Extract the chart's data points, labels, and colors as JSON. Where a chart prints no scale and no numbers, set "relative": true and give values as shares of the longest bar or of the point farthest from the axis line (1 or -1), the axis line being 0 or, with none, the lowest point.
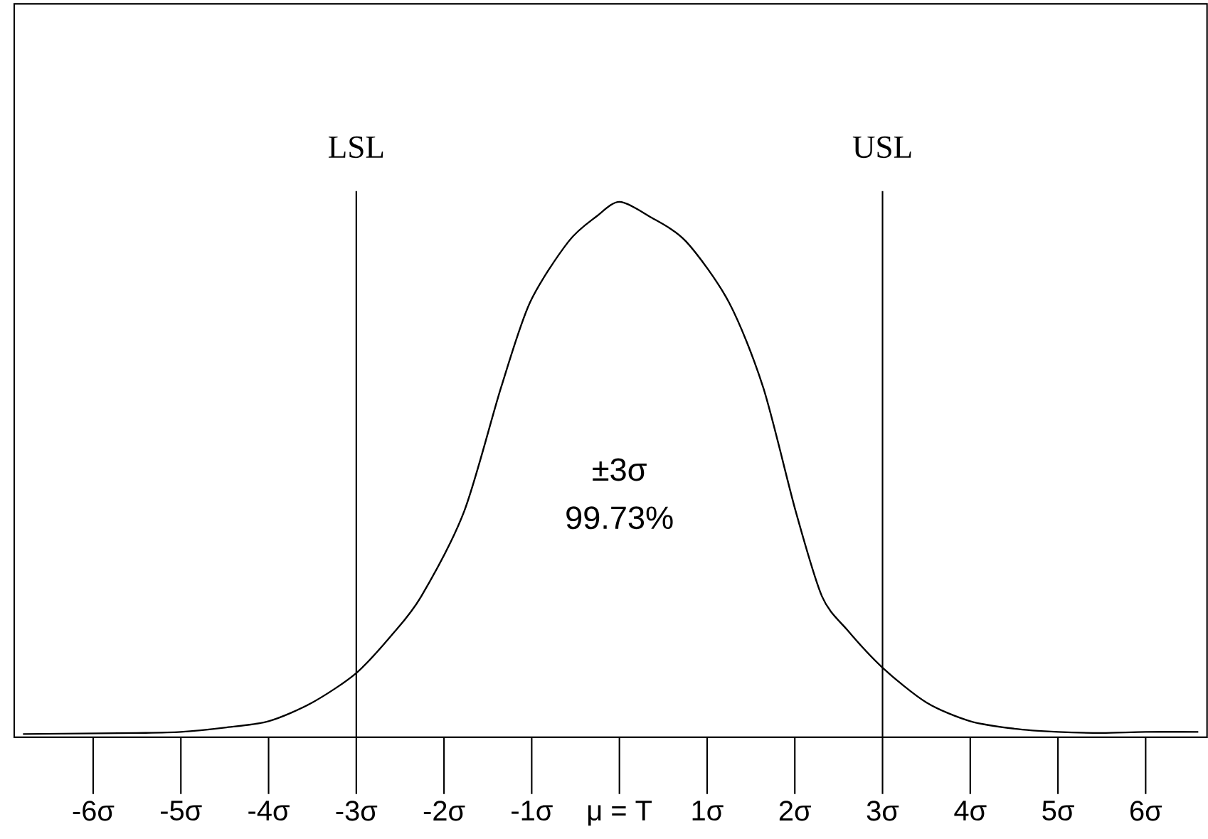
{
  "chart_data": {
    "type": "line",
    "relative": true,
    "tick_labels": "x",
    "color": "#000000",
    "x": [
      -6.8,
      -5.5,
      -5,
      -4.5,
      -4,
      -3.5,
      -3,
      -2.6,
      -2.26,
      -1.77,
      -1.35,
      -1.02,
      -0.58,
      -0.26,
      0,
      0.34,
      0.76,
      1.25,
      1.64,
      2.01,
      2.31,
      2.6,
      3,
      3.5,
      4,
      4.5,
      5,
      5.5,
      6,
      6.6
    ],
    "values": [
      0.006,
      0.008,
      0.01,
      0.018,
      0.03,
      0.065,
      0.12,
      0.19,
      0.263,
      0.422,
      0.653,
      0.812,
      0.926,
      0.973,
      1,
      0.973,
      0.926,
      0.812,
      0.653,
      0.422,
      0.263,
      0.2,
      0.13,
      0.065,
      0.03,
      0.016,
      0.01,
      0.008,
      0.01,
      0.01
    ],
    "xlim": [
      -6.9,
      6.7
    ],
    "xticks": [
      {
        "value": -6,
        "label": "-6σ"
      },
      {
        "value": -5,
        "label": "-5σ"
      },
      {
        "value": -4,
        "label": "-4σ"
      },
      {
        "value": -3,
        "label": "-3σ"
      },
      {
        "value": -2,
        "label": "-2σ"
      },
      {
        "value": -1,
        "label": "-1σ"
      },
      {
        "value": 0,
        "label": "μ = T"
      },
      {
        "value": 1,
        "label": "1σ"
      },
      {
        "value": 2,
        "label": "2σ"
      },
      {
        "value": 3,
        "label": "3σ"
      },
      {
        "value": 4,
        "label": "4σ"
      },
      {
        "value": 5,
        "label": "5σ"
      },
      {
        "value": 6,
        "label": "6σ"
      }
    ],
    "ref_lines": [
      {
        "axis": "x",
        "value": -3,
        "label": "LSL"
      },
      {
        "axis": "x",
        "value": 3,
        "label": "USL"
      }
    ],
    "annotations": [
      "±3σ",
      "99.73%"
    ]
  }
}
